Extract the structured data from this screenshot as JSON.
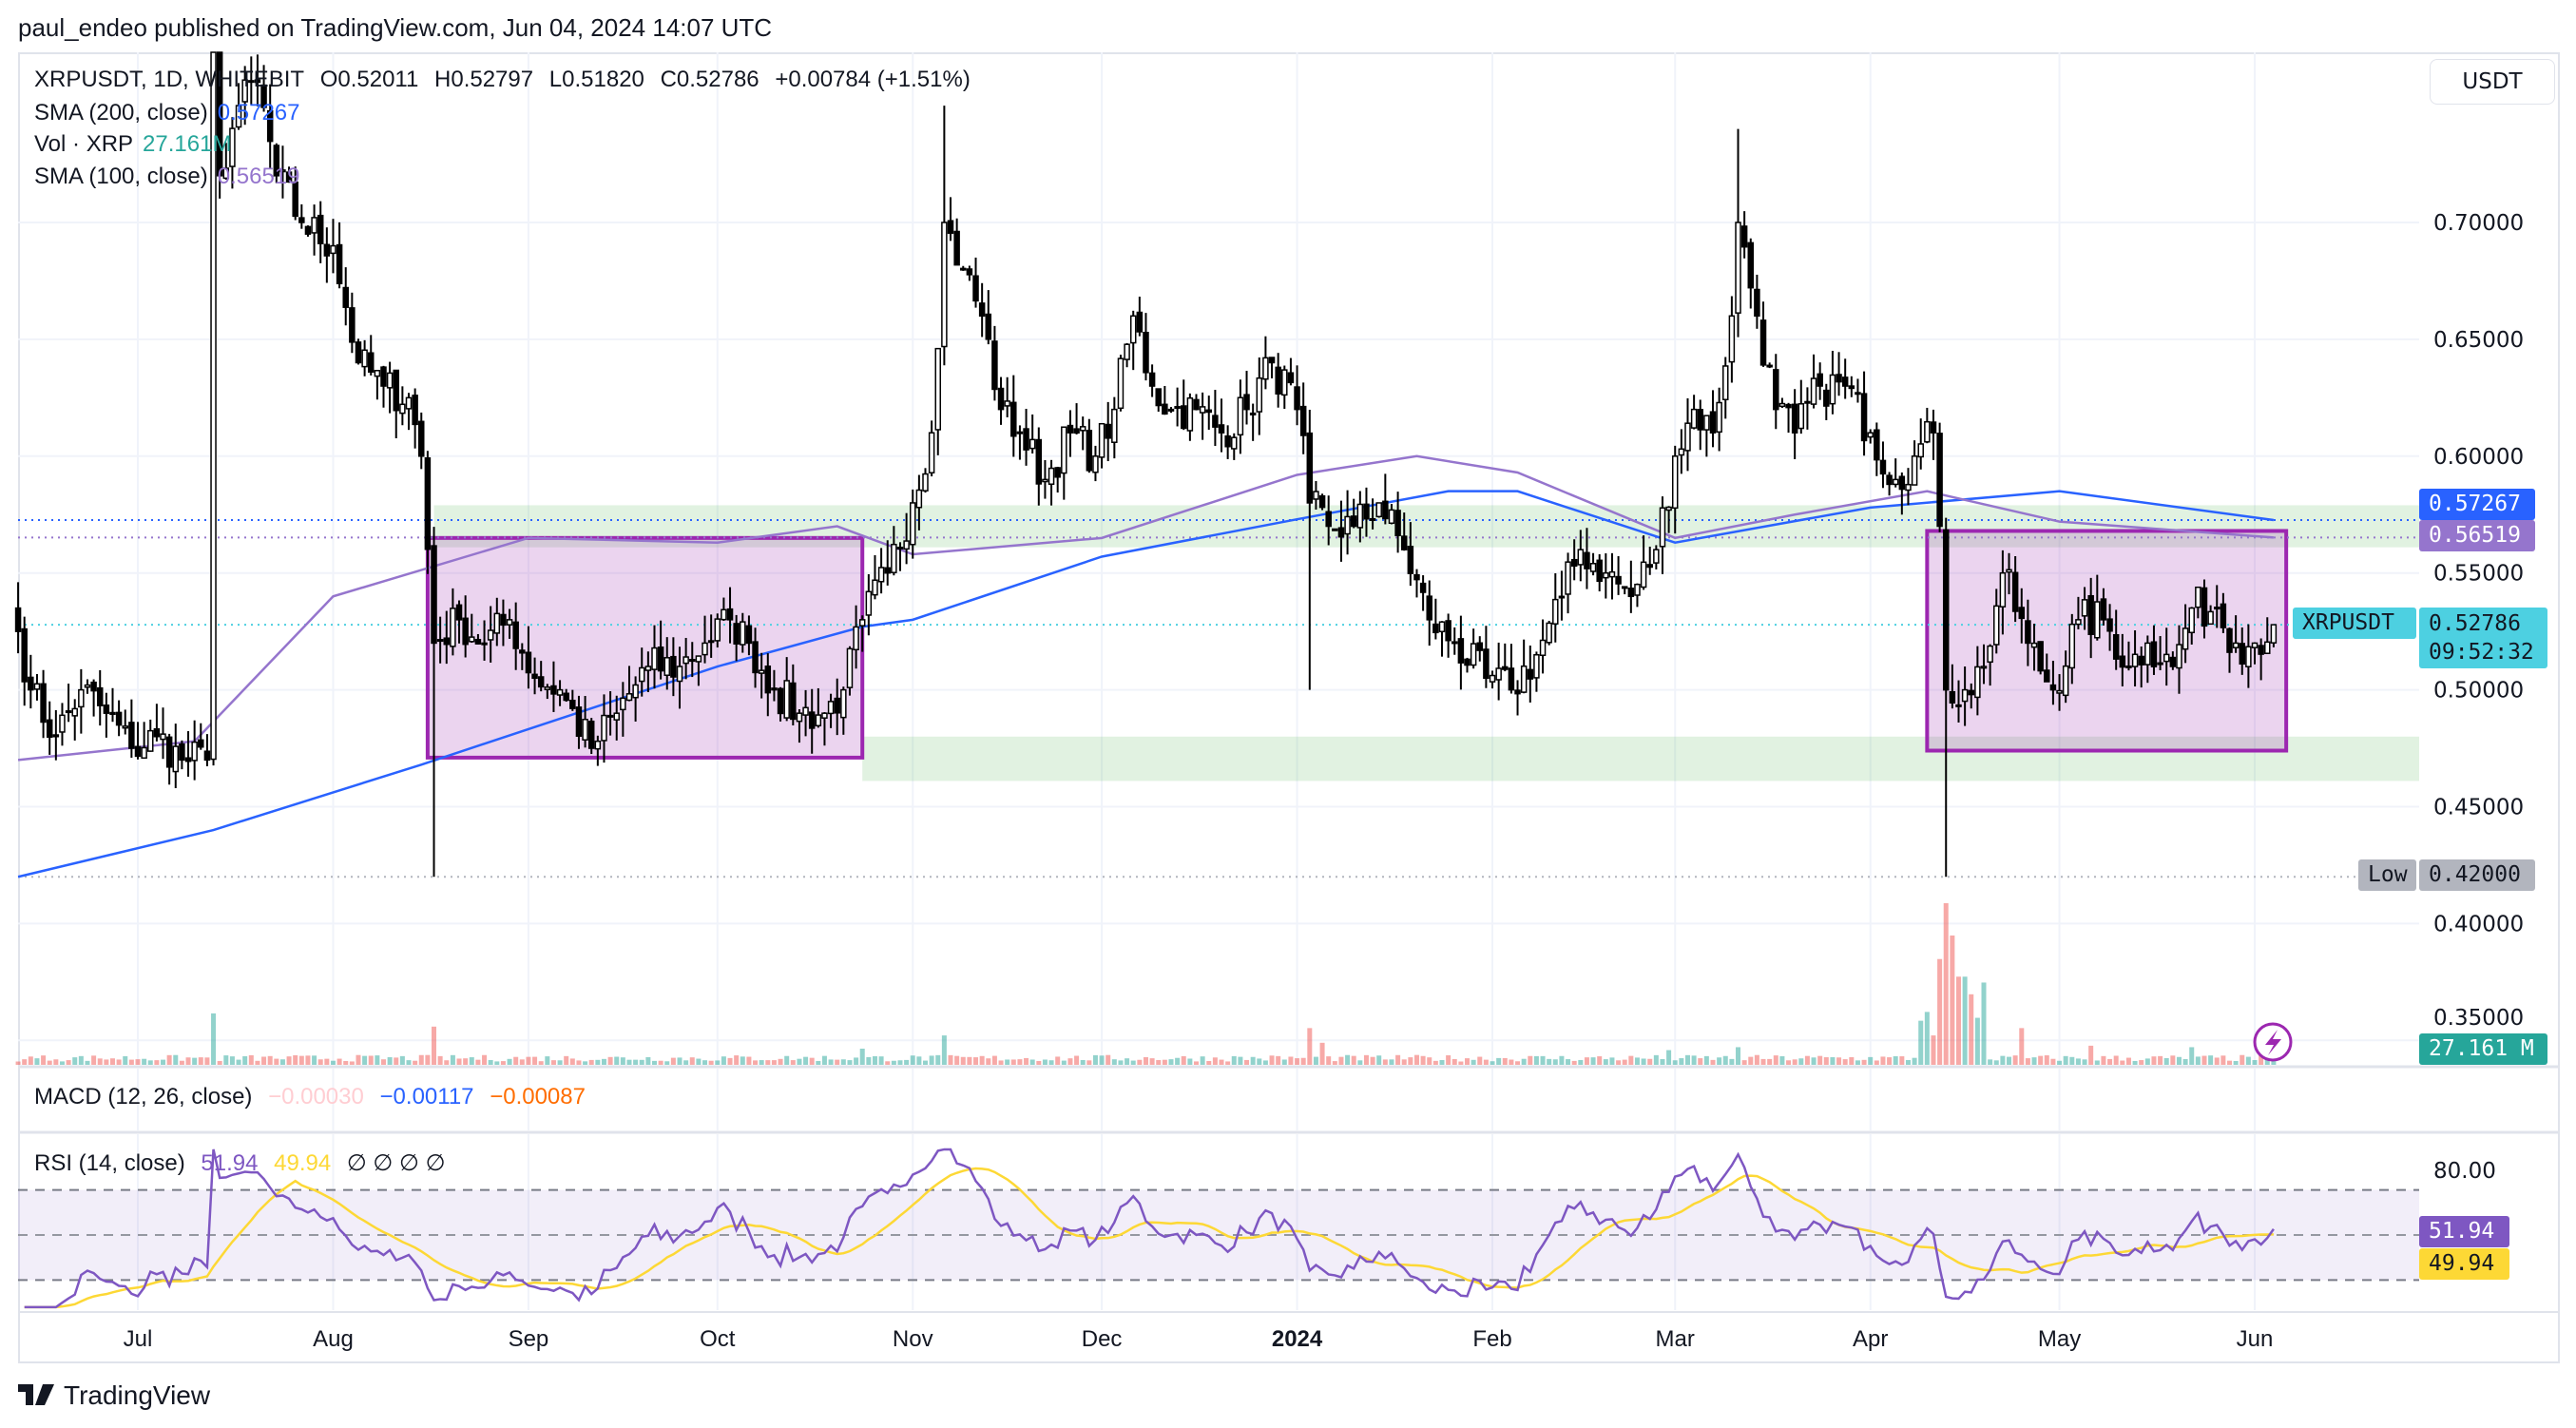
{
  "header": {
    "published": "paul_endeo published on TradingView.com, Jun 04, 2024 14:07 UTC"
  },
  "legend": {
    "symbol": "XRPUSDT, 1D, WHITEBIT",
    "open": "O0.52011",
    "high": "H0.52797",
    "low": "L0.51820",
    "close": "C0.52786",
    "change": "+0.00784 (+1.51%)",
    "sma200_label": "SMA (200, close)",
    "sma200_value": "0.57267",
    "vol_label": "Vol · XRP",
    "vol_value": "27.161M",
    "sma100_label": "SMA (100, close)",
    "sma100_value": "0.56519",
    "macd_label": "MACD (12, 26, close)",
    "macd_hist": "−0.00030",
    "macd_value": "−0.00117",
    "macd_signal": "−0.00087",
    "rsi_label": "RSI (14, close)",
    "rsi_value": "51.94",
    "rsi_ma_value": "49.94",
    "rsi_empty": "∅ ∅ ∅ ∅"
  },
  "price_axis": {
    "currency_button": "USDT",
    "ticks": [
      "0.70000",
      "0.65000",
      "0.60000",
      "0.55000",
      "0.50000",
      "0.45000",
      "0.40000",
      "0.35000"
    ],
    "sma200_badge": "0.57267",
    "sma100_badge": "0.56519",
    "symbol_badge": "XRPUSDT",
    "last_price_badge": "0.52786",
    "countdown": "09:52:32",
    "low_label": "Low",
    "low_badge": "0.42000",
    "volume_badge": "27.161 M"
  },
  "rsi_axis": {
    "tick": "80.00",
    "rsi_badge": "51.94",
    "rsi_ma_badge": "49.94"
  },
  "time_axis": [
    "Jul",
    "Aug",
    "Sep",
    "Oct",
    "Nov",
    "Dec",
    "2024",
    "Feb",
    "Mar",
    "Apr",
    "May",
    "Jun"
  ],
  "footer": {
    "brand": "TradingView"
  },
  "colors": {
    "up_candle": "#ffffff",
    "down_candle": "#000000",
    "sma200": "#2962ff",
    "sma100": "#9575cd",
    "vol_up": "#26a69a",
    "vol_down": "#ef5350",
    "box": "#9c27b0",
    "zone": "#4caf50",
    "last_price": "#4dd0e1",
    "rsi": "#7e57c2",
    "rsi_ma": "#fdd835"
  },
  "icons": {
    "alert": "lightning-bolt-icon",
    "logo": "tradingview-logo-icon"
  },
  "chart_data": {
    "type": "candlestick",
    "symbol": "XRPUSDT",
    "interval": "1D",
    "ylim": [
      0.35,
      0.77
    ],
    "last_candle": {
      "date": "2024-06-04",
      "open": 0.52011,
      "high": 0.52797,
      "low": 0.5182,
      "close": 0.52786
    },
    "close_series": [
      [
        "2023-06-12",
        0.525
      ],
      [
        "2023-06-14",
        0.5
      ],
      [
        "2023-06-18",
        0.48
      ],
      [
        "2023-06-22",
        0.5
      ],
      [
        "2023-06-26",
        0.49
      ],
      [
        "2023-06-30",
        0.475
      ],
      [
        "2023-07-04",
        0.48
      ],
      [
        "2023-07-08",
        0.47
      ],
      [
        "2023-07-12",
        0.47
      ],
      [
        "2023-07-13",
        0.78
      ],
      [
        "2023-07-14",
        0.72
      ],
      [
        "2023-07-17",
        0.75
      ],
      [
        "2023-07-20",
        0.76
      ],
      [
        "2023-07-23",
        0.72
      ],
      [
        "2023-07-27",
        0.7
      ],
      [
        "2023-08-01",
        0.69
      ],
      [
        "2023-08-05",
        0.64
      ],
      [
        "2023-08-09",
        0.63
      ],
      [
        "2023-08-13",
        0.625
      ],
      [
        "2023-08-15",
        0.6
      ],
      [
        "2023-08-17",
        0.52
      ],
      [
        "2023-08-21",
        0.53
      ],
      [
        "2023-08-25",
        0.52
      ],
      [
        "2023-08-29",
        0.53
      ],
      [
        "2023-09-02",
        0.505
      ],
      [
        "2023-09-06",
        0.5
      ],
      [
        "2023-09-11",
        0.475
      ],
      [
        "2023-09-15",
        0.49
      ],
      [
        "2023-09-20",
        0.51
      ],
      [
        "2023-09-25",
        0.51
      ],
      [
        "2023-09-29",
        0.52
      ],
      [
        "2023-10-03",
        0.53
      ],
      [
        "2023-10-06",
        0.52
      ],
      [
        "2023-10-10",
        0.5
      ],
      [
        "2023-10-14",
        0.49
      ],
      [
        "2023-10-18",
        0.49
      ],
      [
        "2023-10-21",
        0.5
      ],
      [
        "2023-10-24",
        0.53
      ],
      [
        "2023-10-28",
        0.55
      ],
      [
        "2023-11-01",
        0.58
      ],
      [
        "2023-11-04",
        0.61
      ],
      [
        "2023-11-06",
        0.7
      ],
      [
        "2023-11-09",
        0.68
      ],
      [
        "2023-11-12",
        0.66
      ],
      [
        "2023-11-15",
        0.62
      ],
      [
        "2023-11-18",
        0.61
      ],
      [
        "2023-11-22",
        0.59
      ],
      [
        "2023-11-26",
        0.61
      ],
      [
        "2023-11-30",
        0.6
      ],
      [
        "2023-12-03",
        0.62
      ],
      [
        "2023-12-06",
        0.66
      ],
      [
        "2023-12-09",
        0.63
      ],
      [
        "2023-12-12",
        0.62
      ],
      [
        "2023-12-16",
        0.62
      ],
      [
        "2023-12-20",
        0.61
      ],
      [
        "2023-12-24",
        0.62
      ],
      [
        "2023-12-28",
        0.64
      ],
      [
        "2024-01-01",
        0.62
      ],
      [
        "2024-01-03",
        0.58
      ],
      [
        "2024-01-06",
        0.57
      ],
      [
        "2024-01-10",
        0.57
      ],
      [
        "2024-01-14",
        0.58
      ],
      [
        "2024-01-18",
        0.56
      ],
      [
        "2024-01-22",
        0.53
      ],
      [
        "2024-01-26",
        0.52
      ],
      [
        "2024-01-31",
        0.505
      ],
      [
        "2024-02-04",
        0.5
      ],
      [
        "2024-02-08",
        0.515
      ],
      [
        "2024-02-12",
        0.54
      ],
      [
        "2024-02-15",
        0.56
      ],
      [
        "2024-02-19",
        0.55
      ],
      [
        "2024-02-23",
        0.54
      ],
      [
        "2024-02-27",
        0.56
      ],
      [
        "2024-03-01",
        0.6
      ],
      [
        "2024-03-04",
        0.62
      ],
      [
        "2024-03-07",
        0.61
      ],
      [
        "2024-03-10",
        0.66
      ],
      [
        "2024-03-11",
        0.7
      ],
      [
        "2024-03-14",
        0.66
      ],
      [
        "2024-03-17",
        0.62
      ],
      [
        "2024-03-20",
        0.61
      ],
      [
        "2024-03-24",
        0.63
      ],
      [
        "2024-03-28",
        0.63
      ],
      [
        "2024-04-01",
        0.61
      ],
      [
        "2024-04-05",
        0.59
      ],
      [
        "2024-04-08",
        0.6
      ],
      [
        "2024-04-11",
        0.61
      ],
      [
        "2024-04-12",
        0.57
      ],
      [
        "2024-04-13",
        0.5
      ],
      [
        "2024-04-16",
        0.5
      ],
      [
        "2024-04-19",
        0.51
      ],
      [
        "2024-04-22",
        0.55
      ],
      [
        "2024-04-26",
        0.52
      ],
      [
        "2024-04-30",
        0.5
      ],
      [
        "2024-05-04",
        0.53
      ],
      [
        "2024-05-08",
        0.53
      ],
      [
        "2024-05-12",
        0.51
      ],
      [
        "2024-05-15",
        0.52
      ],
      [
        "2024-05-19",
        0.51
      ],
      [
        "2024-05-22",
        0.535
      ],
      [
        "2024-05-26",
        0.535
      ],
      [
        "2024-05-29",
        0.52
      ],
      [
        "2024-06-01",
        0.52
      ],
      [
        "2024-06-04",
        0.52786
      ]
    ],
    "wick_extremes": [
      {
        "date": "2023-07-13",
        "high": 0.8
      },
      {
        "date": "2023-08-17",
        "low": 0.42
      },
      {
        "date": "2023-11-06",
        "high": 0.75
      },
      {
        "date": "2024-01-03",
        "low": 0.5
      },
      {
        "date": "2024-03-11",
        "high": 0.74
      },
      {
        "date": "2024-04-13",
        "low": 0.42
      }
    ],
    "sma200": [
      [
        "2023-06-12",
        0.42
      ],
      [
        "2023-07-13",
        0.44
      ],
      [
        "2023-08-15",
        0.468
      ],
      [
        "2023-10-01",
        0.51
      ],
      [
        "2023-10-24",
        0.527
      ],
      [
        "2023-11-01",
        0.53
      ],
      [
        "2023-12-01",
        0.557
      ],
      [
        "2024-01-01",
        0.573
      ],
      [
        "2024-01-25",
        0.585
      ],
      [
        "2024-02-05",
        0.585
      ],
      [
        "2024-03-01",
        0.563
      ],
      [
        "2024-04-01",
        0.578
      ],
      [
        "2024-05-01",
        0.585
      ],
      [
        "2024-06-04",
        0.57267
      ]
    ],
    "sma100": [
      [
        "2023-06-12",
        0.47
      ],
      [
        "2023-07-10",
        0.478
      ],
      [
        "2023-08-01",
        0.54
      ],
      [
        "2023-09-01",
        0.565
      ],
      [
        "2023-10-01",
        0.563
      ],
      [
        "2023-10-20",
        0.57
      ],
      [
        "2023-11-01",
        0.558
      ],
      [
        "2023-12-01",
        0.565
      ],
      [
        "2024-01-01",
        0.592
      ],
      [
        "2024-01-20",
        0.6
      ],
      [
        "2024-02-05",
        0.593
      ],
      [
        "2024-03-01",
        0.565
      ],
      [
        "2024-03-20",
        0.575
      ],
      [
        "2024-04-10",
        0.585
      ],
      [
        "2024-05-01",
        0.572
      ],
      [
        "2024-06-04",
        0.56519
      ]
    ],
    "volume_m": {
      "base": 45,
      "spikes": [
        [
          "2023-07-13",
          350
        ],
        [
          "2023-08-17",
          260
        ],
        [
          "2023-10-24",
          110
        ],
        [
          "2023-11-06",
          200
        ],
        [
          "2024-01-03",
          250
        ],
        [
          "2024-01-05",
          150
        ],
        [
          "2024-02-29",
          100
        ],
        [
          "2024-03-11",
          120
        ],
        [
          "2024-04-09",
          300
        ],
        [
          "2024-04-10",
          360
        ],
        [
          "2024-04-11",
          200
        ],
        [
          "2024-04-12",
          720
        ],
        [
          "2024-04-13",
          1100
        ],
        [
          "2024-04-14",
          880
        ],
        [
          "2024-04-15",
          600
        ],
        [
          "2024-04-16",
          600
        ],
        [
          "2024-04-17",
          480
        ],
        [
          "2024-04-18",
          320
        ],
        [
          "2024-04-19",
          560
        ],
        [
          "2024-04-25",
          250
        ],
        [
          "2024-05-06",
          130
        ],
        [
          "2024-05-22",
          120
        ],
        [
          "2024-06-04",
          27.161
        ]
      ]
    },
    "zones": [
      {
        "type": "box",
        "from": "2023-08-16",
        "to": "2023-10-24",
        "top": 0.565,
        "bottom": 0.471
      },
      {
        "type": "box",
        "from": "2024-04-10",
        "to": "2024-06-06",
        "top": 0.568,
        "bottom": 0.474
      },
      {
        "type": "band",
        "from": "2023-08-17",
        "top": 0.579,
        "bottom": 0.561
      },
      {
        "type": "band",
        "from": "2023-10-24",
        "top": 0.48,
        "bottom": 0.461
      }
    ],
    "rsi": {
      "period": 14,
      "bands": [
        30,
        50,
        70
      ],
      "ylim": [
        18,
        88
      ]
    }
  }
}
